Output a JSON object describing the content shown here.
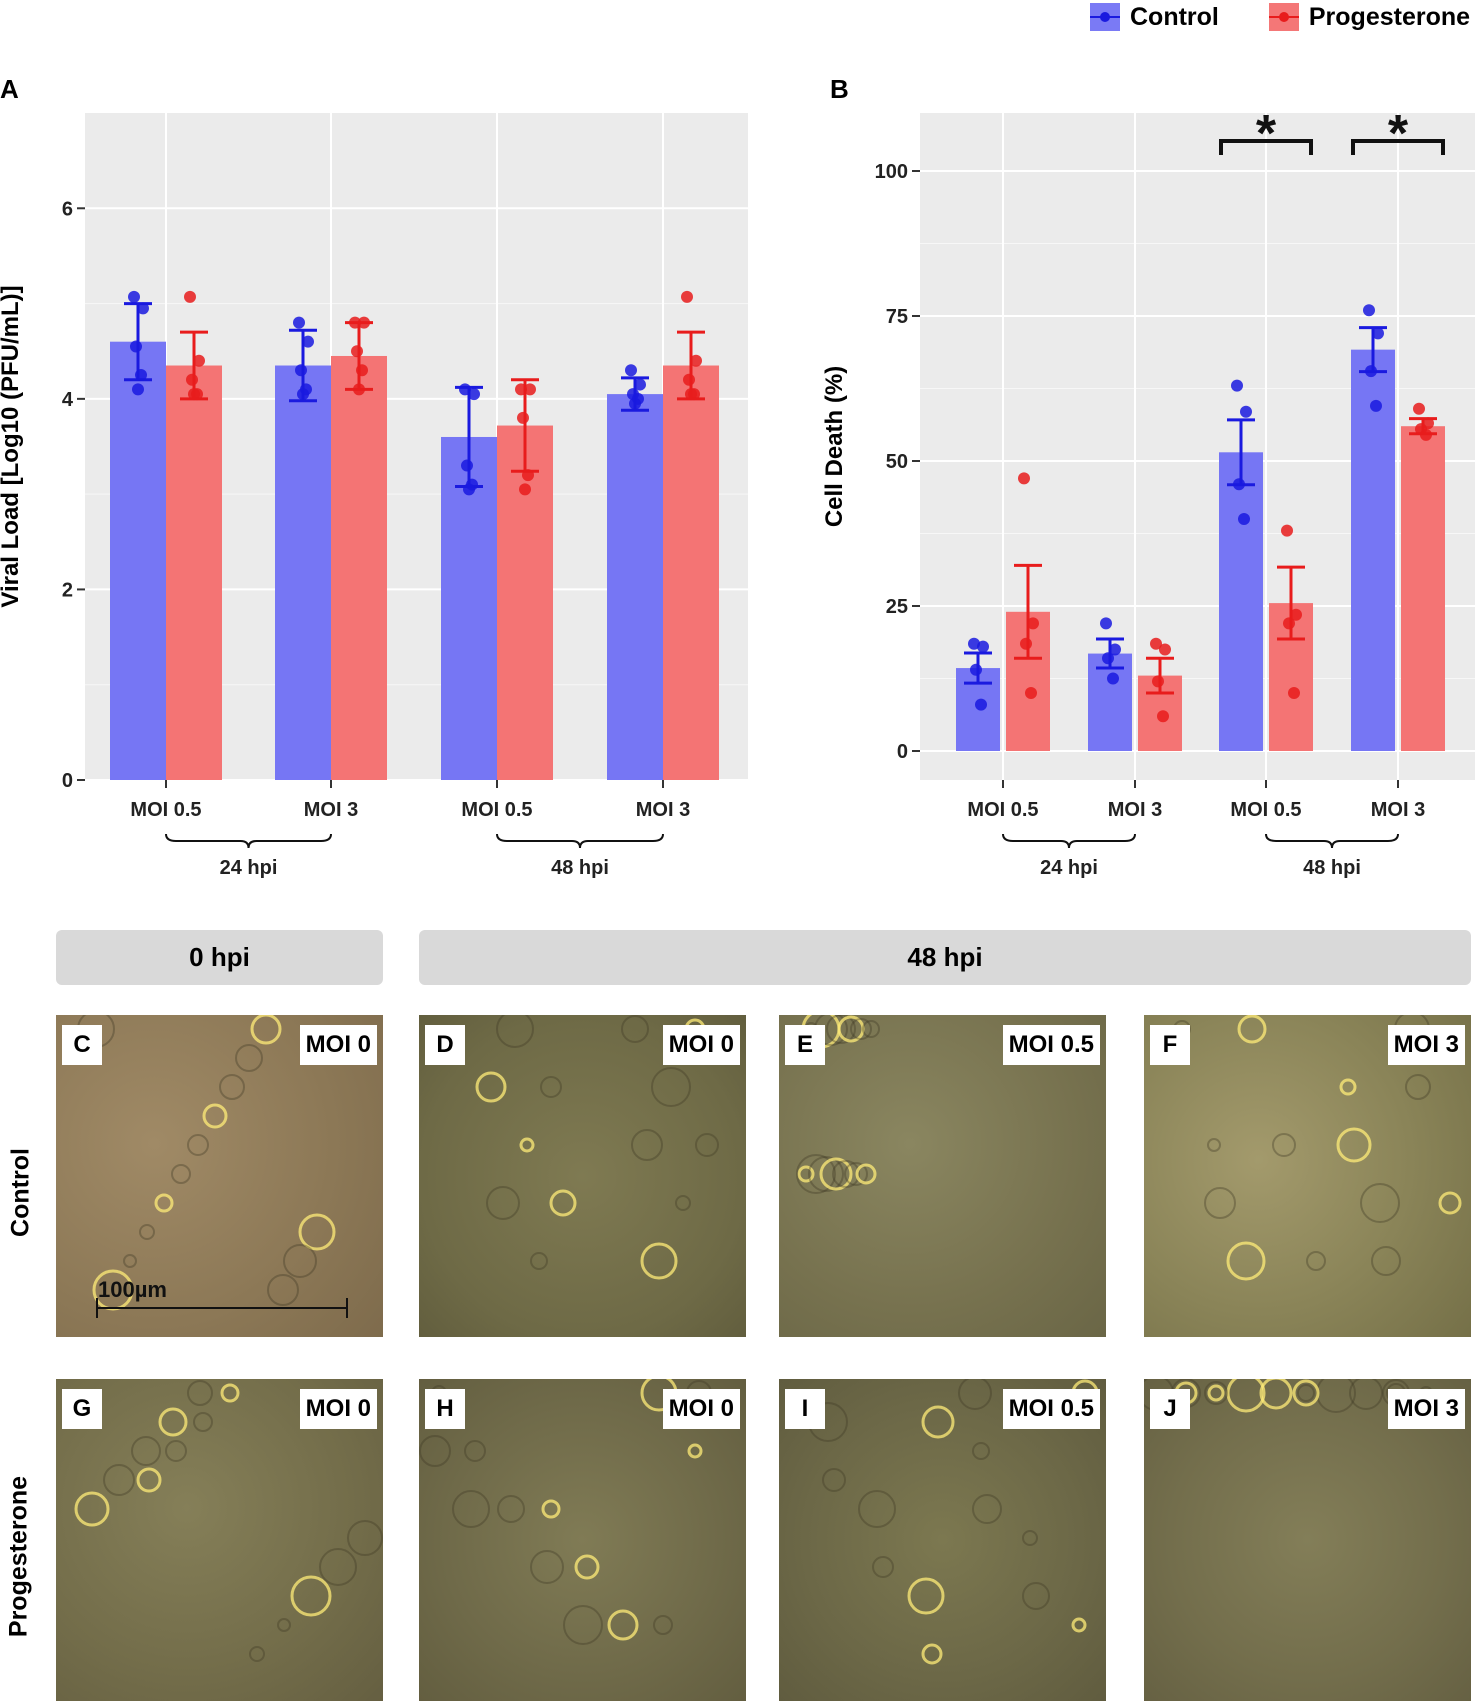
{
  "legend": {
    "items": [
      {
        "label": "Control",
        "color": "#1a1adf"
      },
      {
        "label": "Progesterone",
        "color": "#e81c1c"
      }
    ]
  },
  "chart_data": [
    {
      "panel": "A",
      "type": "bar",
      "ylabel": "Viral Load [Log10 (PFU/mL)]",
      "ylim": [
        0,
        7
      ],
      "yticks": [
        0,
        2,
        4,
        6
      ],
      "categories": [
        "MOI 0.5",
        "MOI 3",
        "MOI 0.5",
        "MOI 3"
      ],
      "groups": [
        {
          "label": "24 hpi",
          "categories": [
            0,
            1
          ]
        },
        {
          "label": "48 hpi",
          "categories": [
            2,
            3
          ]
        }
      ],
      "series": [
        {
          "name": "Control",
          "values": [
            4.6,
            4.35,
            3.6,
            4.05
          ],
          "err": [
            0.4,
            0.37,
            0.52,
            0.17
          ],
          "points": [
            [
              5.07,
              4.95,
              4.55,
              4.25,
              4.1
            ],
            [
              4.8,
              4.6,
              4.3,
              4.1,
              4.05
            ],
            [
              4.1,
              4.05,
              3.3,
              3.1,
              3.05
            ],
            [
              4.3,
              4.15,
              4.05,
              4.0,
              3.95
            ]
          ]
        },
        {
          "name": "Progesterone",
          "values": [
            4.35,
            4.45,
            3.72,
            4.35
          ],
          "err": [
            0.35,
            0.35,
            0.48,
            0.35
          ],
          "points": [
            [
              5.07,
              4.4,
              4.2,
              4.05,
              4.05
            ],
            [
              4.8,
              4.8,
              4.5,
              4.3,
              4.1
            ],
            [
              4.1,
              4.1,
              3.8,
              3.2,
              3.05
            ],
            [
              5.07,
              4.4,
              4.2,
              4.05,
              4.05
            ]
          ]
        }
      ]
    },
    {
      "panel": "B",
      "type": "bar",
      "ylabel": "Cell Death (%)",
      "ylim": [
        -5,
        110
      ],
      "yticks": [
        0,
        25,
        50,
        75,
        100
      ],
      "categories": [
        "MOI 0.5",
        "MOI 3",
        "MOI 0.5",
        "MOI 3"
      ],
      "groups": [
        {
          "label": "24 hpi",
          "categories": [
            0,
            1
          ]
        },
        {
          "label": "48 hpi",
          "categories": [
            2,
            3
          ]
        }
      ],
      "series": [
        {
          "name": "Control",
          "values": [
            14.3,
            16.8,
            51.5,
            69.2
          ],
          "err": [
            2.6,
            2.5,
            5.6,
            3.8
          ],
          "points": [
            [
              18.5,
              18.0,
              14.0,
              8.0
            ],
            [
              22.0,
              17.5,
              16.0,
              12.5
            ],
            [
              63.0,
              58.5,
              46.0,
              40.0
            ],
            [
              76.0,
              72.0,
              65.5,
              59.5
            ]
          ]
        },
        {
          "name": "Progesterone",
          "values": [
            24.0,
            13.0,
            25.5,
            56.0
          ],
          "err": [
            8.0,
            3.0,
            6.2,
            1.3
          ],
          "points": [
            [
              47.0,
              22.0,
              18.5,
              10.0
            ],
            [
              18.5,
              17.5,
              12.0,
              6.0
            ],
            [
              38.0,
              23.5,
              22.0,
              10.0
            ],
            [
              59.0,
              56.5,
              55.5,
              54.5
            ]
          ]
        }
      ],
      "significance": [
        {
          "category": 2,
          "label": "*"
        },
        {
          "category": 3,
          "label": "*"
        }
      ]
    }
  ],
  "panel_labels": {
    "a": "A",
    "b": "B"
  },
  "micrographs": {
    "headers": {
      "left": "0 hpi",
      "right": "48 hpi"
    },
    "row_labels": {
      "top": "Control",
      "bottom": "Progesterone"
    },
    "scale_bar": "100µm",
    "tiles": [
      {
        "letter": "C",
        "moi": "MOI 0"
      },
      {
        "letter": "D",
        "moi": "MOI 0"
      },
      {
        "letter": "E",
        "moi": "MOI 0.5"
      },
      {
        "letter": "F",
        "moi": "MOI 3"
      },
      {
        "letter": "G",
        "moi": "MOI 0"
      },
      {
        "letter": "H",
        "moi": "MOI 0"
      },
      {
        "letter": "I",
        "moi": "MOI 0.5"
      },
      {
        "letter": "J",
        "moi": "MOI 3"
      }
    ]
  }
}
